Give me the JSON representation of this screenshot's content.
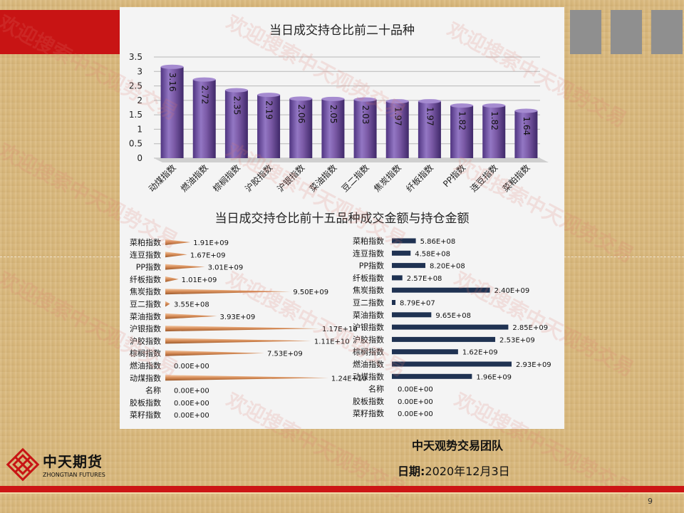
{
  "page_number": "9",
  "watermark": "欢迎搜索中天观势交易",
  "footer": {
    "team": "中天观势交易团队",
    "date_label": "日期:",
    "date_value": "2020年12月3日",
    "logo_cn": "中天期货",
    "logo_en": "ZHONGTIAN FUTURES"
  },
  "colors": {
    "top_red": "#c81414",
    "bar_purple": "#7b5aa6",
    "cone_orange": "#d58a55",
    "bar_navy": "#1f3252",
    "bottom_red": "#cc1515"
  },
  "chart_data": [
    {
      "type": "bar",
      "title": "当日成交持仓比前二十品种",
      "categories": [
        "动煤指数",
        "燃油指数",
        "棕榈指数",
        "沪胶指数",
        "沪银指数",
        "菜油指数",
        "豆二指数",
        "焦炭指数",
        "纤板指数",
        "PP指数",
        "连豆指数",
        "菜粕指数"
      ],
      "values": [
        3.16,
        2.72,
        2.35,
        2.19,
        2.06,
        2.05,
        2.03,
        1.97,
        1.97,
        1.82,
        1.82,
        1.64
      ],
      "data_labels": [
        "3.16",
        "2.72",
        "2.35",
        "2.19",
        "2.06",
        "2.05",
        "2.03",
        "1.97",
        "1.97",
        "1.82",
        "1.82",
        "1.64"
      ],
      "yticks": [
        "0",
        "0.5",
        "1",
        "1.5",
        "2",
        "2.5",
        "3",
        "3.5"
      ],
      "ylim": [
        0,
        3.5
      ],
      "grid": true
    },
    {
      "type": "bar",
      "orientation": "horizontal",
      "title": "当日成交持仓比前十五品种成交金额与持仓金额",
      "categories": [
        "菜粕指数",
        "连豆指数",
        "PP指数",
        "纤板指数",
        "焦炭指数",
        "豆二指数",
        "菜油指数",
        "沪银指数",
        "沪胶指数",
        "棕榈指数",
        "燃油指数",
        "动煤指数",
        "名称",
        "胶板指数",
        "菜籽指数"
      ],
      "values": [
        1910000000.0,
        1670000000.0,
        3010000000.0,
        1010000000.0,
        9500000000.0,
        355000000.0,
        3930000000.0,
        11700000000.0,
        11100000000.0,
        7530000000.0,
        0,
        12400000000.0,
        0,
        0,
        0
      ],
      "data_labels": [
        "1.91E+09",
        "1.67E+09",
        "3.01E+09",
        "1.01E+09",
        "9.50E+09",
        "3.55E+08",
        "3.93E+09",
        "1.17E+10",
        "1.11E+10",
        "7.53E+09",
        "0.00E+00",
        "1.24E+10",
        "0.00E+00",
        "0.00E+00",
        "0.00E+00"
      ]
    },
    {
      "type": "bar",
      "orientation": "horizontal",
      "categories": [
        "菜粕指数",
        "连豆指数",
        "PP指数",
        "纤板指数",
        "焦炭指数",
        "豆二指数",
        "菜油指数",
        "沪银指数",
        "沪胶指数",
        "棕榈指数",
        "燃油指数",
        "动煤指数",
        "名称",
        "胶板指数",
        "菜籽指数"
      ],
      "values": [
        586000000.0,
        458000000.0,
        820000000.0,
        257000000.0,
        2400000000.0,
        87900000.0,
        965000000.0,
        2850000000.0,
        2530000000.0,
        1620000000.0,
        2930000000.0,
        1960000000.0,
        0,
        0,
        0
      ],
      "data_labels": [
        "5.86E+08",
        "4.58E+08",
        "8.20E+08",
        "2.57E+08",
        "2.40E+09",
        "8.79E+07",
        "9.65E+08",
        "2.85E+09",
        "2.53E+09",
        "1.62E+09",
        "2.93E+09",
        "1.96E+09",
        "0.00E+00",
        "0.00E+00",
        "0.00E+00"
      ]
    }
  ]
}
